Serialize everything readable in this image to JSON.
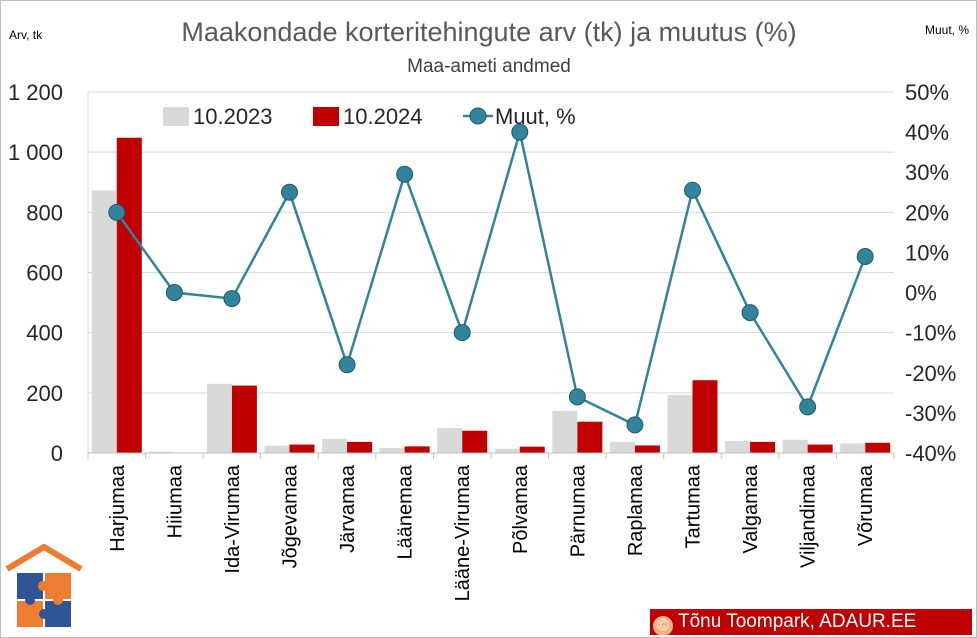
{
  "chart_data": {
    "type": "bar",
    "title": "Maakondade korteritehingute arv (tk) ja muutus (%)",
    "subtitle": "Maa-ameti andmed",
    "ylabel_left": "Arv, tk",
    "ylabel_right": "Muut, %",
    "ylim_left": [
      0,
      1200
    ],
    "ylim_right": [
      -40,
      50
    ],
    "yticks_left": [
      "0",
      "200",
      "400",
      "600",
      "800",
      "1 000",
      "1 200"
    ],
    "yticks_right": [
      "-40%",
      "-30%",
      "-20%",
      "-10%",
      "0%",
      "10%",
      "20%",
      "30%",
      "40%",
      "50%"
    ],
    "grid": true,
    "legend_position": "top",
    "categories": [
      "Harjumaa",
      "Hiiumaa",
      "Ida-Virumaa",
      "Jõgevamaa",
      "Järvamaa",
      "Läänemaa",
      "Lääne-Virumaa",
      "Põlvamaa",
      "Pärnumaa",
      "Raplamaa",
      "Tartumaa",
      "Valgamaa",
      "Viljandimaa",
      "Võrumaa"
    ],
    "series": [
      {
        "name": "10.2023",
        "kind": "bar",
        "axis": "left",
        "color": "#d9d9d9",
        "values": [
          873,
          4,
          230,
          24,
          47,
          17,
          83,
          14,
          140,
          37,
          193,
          40,
          44,
          32
        ]
      },
      {
        "name": "10.2024",
        "kind": "bar",
        "axis": "left",
        "color": "#c00000",
        "values": [
          1048,
          0,
          224,
          28,
          37,
          22,
          74,
          21,
          104,
          25,
          242,
          37,
          28,
          34
        ]
      },
      {
        "name": "Muut, %",
        "kind": "line",
        "axis": "right",
        "color": "#31849b",
        "values": [
          20,
          0,
          -1.5,
          25,
          -18,
          29.5,
          -10,
          40,
          -26,
          -33,
          25.5,
          -5,
          -28.5,
          9
        ]
      }
    ]
  },
  "credit": {
    "symbol": "©",
    "text": "Tõnu Toompark, ADAUR.EE"
  },
  "colors": {
    "title": "#595959",
    "grid": "#d9d9d9",
    "logo_orange": "#ed7d31",
    "logo_blue": "#2f5597"
  }
}
